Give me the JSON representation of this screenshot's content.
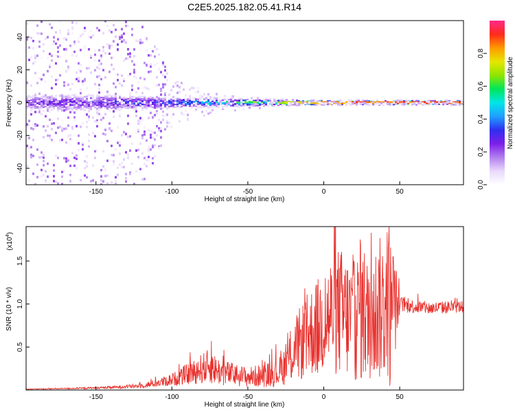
{
  "title": "C2E5.2025.182.05.41.R14",
  "colors": {
    "snr_line": "#e8322e",
    "background": "#ffffff",
    "colorbar": [
      "#ffffff",
      "#e9d9fb",
      "#b27ff0",
      "#7d1fe8",
      "#2f2ff0",
      "#1fa0ff",
      "#00e6e6",
      "#00e65c",
      "#8fe600",
      "#e6e600",
      "#ff9a00",
      "#ff2a1a",
      "#ff2a8a"
    ]
  },
  "chart_data": [
    {
      "type": "heatmap",
      "name": "spectrogram",
      "xlabel": "Height of straight line (km)",
      "ylabel": "Frequency (Hz)",
      "xlim": [
        -196,
        92
      ],
      "ylim": [
        -50,
        50
      ],
      "x_ticks": [
        "-150",
        "-100",
        "-50",
        "0",
        "50"
      ],
      "x_tick_values": [
        -150,
        -100,
        -50,
        0,
        50
      ],
      "y_ticks": [
        "-40",
        "-20",
        "0",
        "20",
        "40"
      ],
      "y_tick_values": [
        -40,
        -20,
        0,
        20,
        40
      ],
      "colorbar": {
        "label": "Normalized spectral amplitude",
        "range": [
          0,
          1
        ],
        "ticks": [
          "0.0",
          "0.2",
          "0.4",
          "0.6",
          "0.8"
        ],
        "tick_values": [
          0.0,
          0.2,
          0.4,
          0.6,
          0.8
        ]
      },
      "ridge": {
        "x": [
          -196,
          -150,
          -120,
          -100,
          -80,
          -60,
          -40,
          -20,
          0,
          20,
          40,
          60,
          92
        ],
        "frequency": [
          0,
          0,
          0,
          0,
          0,
          0,
          0,
          0,
          0,
          0,
          0,
          0,
          0
        ],
        "half_width_hz": [
          8,
          8,
          6,
          5,
          4,
          3.5,
          3,
          2.5,
          2,
          2,
          2,
          2,
          2
        ],
        "peak_amplitude": [
          0.25,
          0.3,
          0.35,
          0.4,
          0.5,
          0.6,
          0.7,
          0.8,
          0.9,
          0.92,
          0.95,
          0.95,
          0.95
        ],
        "scatter_spread_hz": [
          50,
          50,
          50,
          15,
          8,
          5,
          3,
          2,
          1,
          1,
          1,
          1,
          1
        ]
      }
    },
    {
      "type": "line",
      "name": "snr",
      "xlabel": "Height of straight line (km)",
      "ylabel": "SNR (10 * v/v)",
      "y_multiplier": "(x10",
      "y_multiplier_exp": "4",
      "xlim": [
        -196,
        92
      ],
      "ylim": [
        0,
        1.9
      ],
      "x_ticks": [
        "-150",
        "-100",
        "-50",
        "0",
        "50"
      ],
      "x_tick_values": [
        -150,
        -100,
        -50,
        0,
        50
      ],
      "y_ticks": [
        "0.5",
        "1.0",
        "1.5"
      ],
      "y_tick_values": [
        0.5,
        1.0,
        1.5
      ],
      "envelope": {
        "x": [
          -196,
          -160,
          -140,
          -120,
          -110,
          -100,
          -90,
          -80,
          -75,
          -70,
          -60,
          -50,
          -40,
          -30,
          -25,
          -20,
          -15,
          -10,
          -5,
          0,
          5,
          10,
          15,
          20,
          25,
          30,
          35,
          40,
          45,
          50,
          55,
          60,
          70,
          80,
          92
        ],
        "y": [
          0.01,
          0.02,
          0.03,
          0.05,
          0.08,
          0.12,
          0.18,
          0.25,
          0.28,
          0.22,
          0.18,
          0.15,
          0.17,
          0.2,
          0.3,
          0.45,
          0.55,
          0.65,
          0.72,
          0.8,
          0.88,
          0.92,
          0.85,
          0.8,
          0.92,
          0.88,
          0.9,
          1.0,
          0.95,
          1.0,
          0.98,
          0.97,
          0.95,
          0.96,
          0.97
        ]
      },
      "noise_ratio": {
        "x": [
          -196,
          -120,
          -80,
          -40,
          -20,
          0,
          20,
          45,
          50,
          92
        ],
        "y": [
          0.4,
          0.6,
          0.8,
          0.9,
          0.9,
          0.85,
          1.0,
          1.0,
          0.1,
          0.08
        ]
      },
      "spikes": [
        {
          "x": -74,
          "y": 0.57
        },
        {
          "x": -12,
          "y": 1.02
        },
        {
          "x": 1,
          "y": 1.3
        },
        {
          "x": 12,
          "y": 1.22
        },
        {
          "x": 21,
          "y": 1.1
        },
        {
          "x": 24,
          "y": 1.75
        },
        {
          "x": 28,
          "y": 1.12
        },
        {
          "x": 33,
          "y": 1.35
        },
        {
          "x": 36,
          "y": 1.4
        },
        {
          "x": 39,
          "y": 1.2
        },
        {
          "x": 43,
          "y": 1.9
        },
        {
          "x": 46,
          "y": 1.45
        }
      ],
      "dips": [
        {
          "x": -4,
          "y": 0.2
        },
        {
          "x": 24.5,
          "y": 0.15
        },
        {
          "x": 29,
          "y": 0.3
        },
        {
          "x": 43.5,
          "y": 0.05
        }
      ]
    }
  ]
}
